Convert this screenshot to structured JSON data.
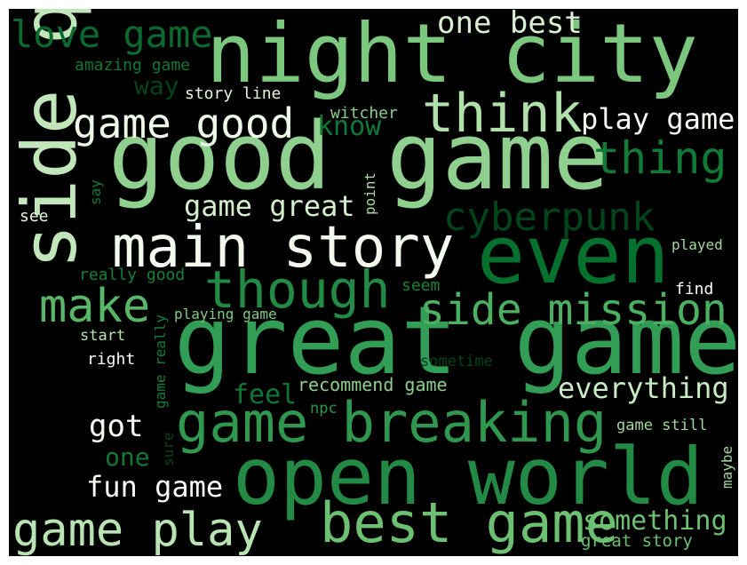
{
  "background": "#000000",
  "colormap": "Greens",
  "words": [
    {
      "text": "great game",
      "color": "#329d54"
    },
    {
      "text": "good game",
      "color": "#8fd08f"
    },
    {
      "text": "night city",
      "color": "#7cc77e"
    },
    {
      "text": "open world",
      "color": "#228a44"
    },
    {
      "text": "side quest",
      "color": "#c1e6ba"
    },
    {
      "text": "even",
      "color": "#05712f"
    },
    {
      "text": "main story",
      "color": "#f2faef"
    },
    {
      "text": "game breaking",
      "color": "#2f974e"
    },
    {
      "text": "best game",
      "color": "#6cc072"
    },
    {
      "text": "game play",
      "color": "#b9e3b2"
    },
    {
      "text": "think",
      "color": "#b2e0ab"
    },
    {
      "text": "though",
      "color": "#228a44"
    },
    {
      "text": "side mission",
      "color": "#4bb062"
    },
    {
      "text": "game good",
      "color": "#edf8e9"
    },
    {
      "text": "cyberpunk",
      "color": "#00441b"
    },
    {
      "text": "thing",
      "color": "#107a37"
    },
    {
      "text": "make",
      "color": "#58b668"
    },
    {
      "text": "love game",
      "color": "#0b6a2f"
    },
    {
      "text": "one best",
      "color": "#d8f0d2"
    },
    {
      "text": "play game",
      "color": "#f4fbf2"
    },
    {
      "text": "game great",
      "color": "#d4eecd"
    },
    {
      "text": "everything",
      "color": "#c9eac2"
    },
    {
      "text": "something",
      "color": "#6cc072"
    },
    {
      "text": "fun game",
      "color": "#f7fcf5"
    },
    {
      "text": "got",
      "color": "#f4fbf1"
    },
    {
      "text": "feel",
      "color": "#0d7835"
    },
    {
      "text": "know",
      "color": "#0f7a37"
    },
    {
      "text": "way",
      "color": "#00441b"
    },
    {
      "text": "one",
      "color": "#0e7935"
    },
    {
      "text": "great story",
      "color": "#6cc072"
    },
    {
      "text": "recommend game",
      "color": "#8dcf8b"
    },
    {
      "text": "amazing game",
      "color": "#0f7736"
    },
    {
      "text": "story line",
      "color": "#e4f5df"
    },
    {
      "text": "witcher",
      "color": "#8ace88"
    },
    {
      "text": "playing game",
      "color": "#81ca80"
    },
    {
      "text": "really good",
      "color": "#138139"
    },
    {
      "text": "start",
      "color": "#b9e3b2"
    },
    {
      "text": "right",
      "color": "#f4fbf1"
    },
    {
      "text": "seem",
      "color": "#138139"
    },
    {
      "text": "sometime",
      "color": "#00441b"
    },
    {
      "text": "npc",
      "color": "#2a924a"
    },
    {
      "text": "game still",
      "color": "#a0d79b"
    },
    {
      "text": "find",
      "color": "#f7fcf5"
    },
    {
      "text": "played",
      "color": "#a1d99b"
    },
    {
      "text": "see",
      "color": "#e5f5e0"
    },
    {
      "text": "say",
      "color": "#107a37"
    },
    {
      "text": "point",
      "color": "#a8dba3"
    },
    {
      "text": "game really",
      "color": "#137e3a"
    },
    {
      "text": "sure",
      "color": "#00441b"
    },
    {
      "text": "maybe",
      "color": "#9ed798"
    }
  ]
}
